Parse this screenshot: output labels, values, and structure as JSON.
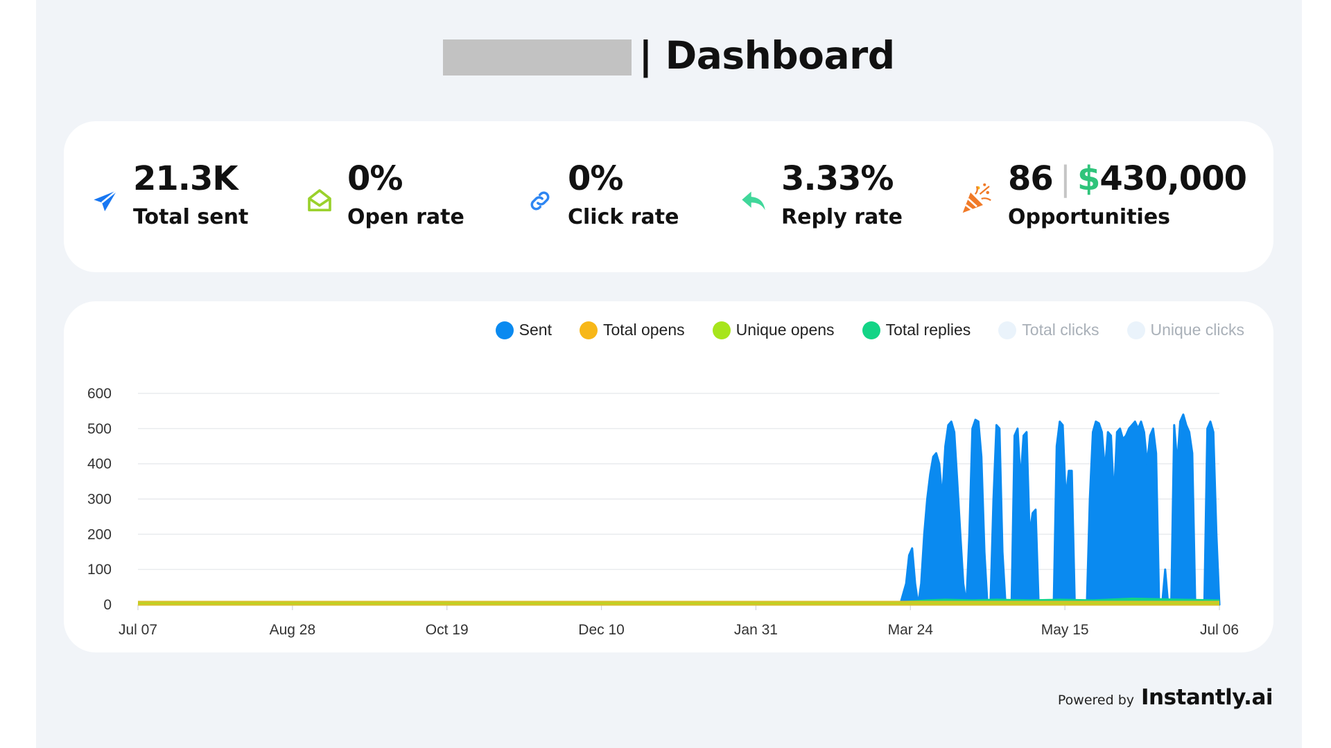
{
  "header": {
    "title": "| Dashboard"
  },
  "stats": [
    {
      "value": "21.3K",
      "label": "Total sent",
      "icon": "paper-plane-icon",
      "color": "#1877f2"
    },
    {
      "value": "0%",
      "label": "Open rate",
      "icon": "envelope-open-icon",
      "color": "#9ad12c"
    },
    {
      "value": "0%",
      "label": "Click rate",
      "icon": "link-icon",
      "color": "#2e86f2"
    },
    {
      "value": "3.33%",
      "label": "Reply rate",
      "icon": "reply-icon",
      "color": "#40d79a"
    },
    {
      "value_count": "86",
      "value_separator": "|",
      "value_currency": "$",
      "value_amount": "430,000",
      "label": "Opportunities",
      "icon": "party-popper-icon",
      "color": "#f07a28"
    }
  ],
  "chart_data": {
    "type": "area",
    "x_ticks": [
      "Jul 07",
      "Aug 28",
      "Oct 19",
      "Dec 10",
      "Jan 31",
      "Mar 24",
      "May 15",
      "Jul 06"
    ],
    "y_ticks": [
      "0",
      "100",
      "200",
      "300",
      "400",
      "500",
      "600"
    ],
    "ylim": [
      0,
      600
    ],
    "grid": true,
    "legend_position": "top-right",
    "legend": [
      {
        "name": "Sent",
        "color": "#0a8af0",
        "active": true
      },
      {
        "name": "Total opens",
        "color": "#f7b718",
        "active": true
      },
      {
        "name": "Unique opens",
        "color": "#a7e51c",
        "active": true
      },
      {
        "name": "Total replies",
        "color": "#13d486",
        "active": true
      },
      {
        "name": "Total clicks",
        "color": "#eaf3fb",
        "active": false
      },
      {
        "name": "Unique clicks",
        "color": "#eaf3fb",
        "active": false
      }
    ],
    "series": [
      {
        "name": "Sent",
        "points": [
          [
            253,
            0
          ],
          [
            255,
            60
          ],
          [
            256,
            140
          ],
          [
            257,
            160
          ],
          [
            258,
            60
          ],
          [
            259,
            0
          ],
          [
            260,
            60
          ],
          [
            261,
            200
          ],
          [
            262,
            300
          ],
          [
            263,
            370
          ],
          [
            264,
            420
          ],
          [
            265,
            430
          ],
          [
            266,
            400
          ],
          [
            267,
            300
          ],
          [
            268,
            450
          ],
          [
            269,
            510
          ],
          [
            270,
            520
          ],
          [
            271,
            490
          ],
          [
            272,
            350
          ],
          [
            273,
            200
          ],
          [
            274,
            60
          ],
          [
            275,
            0
          ],
          [
            276,
            200
          ],
          [
            277,
            500
          ],
          [
            278,
            525
          ],
          [
            279,
            520
          ],
          [
            280,
            420
          ],
          [
            281,
            150
          ],
          [
            282,
            0
          ],
          [
            283,
            0
          ],
          [
            284,
            300
          ],
          [
            285,
            510
          ],
          [
            286,
            500
          ],
          [
            287,
            150
          ],
          [
            288,
            0
          ],
          [
            289,
            0
          ],
          [
            290,
            0
          ],
          [
            291,
            480
          ],
          [
            292,
            500
          ],
          [
            293,
            350
          ],
          [
            294,
            480
          ],
          [
            295,
            490
          ],
          [
            296,
            200
          ],
          [
            297,
            260
          ],
          [
            298,
            270
          ],
          [
            299,
            0
          ],
          [
            300,
            0
          ],
          [
            301,
            0
          ],
          [
            302,
            0
          ],
          [
            303,
            0
          ],
          [
            304,
            0
          ],
          [
            305,
            450
          ],
          [
            306,
            520
          ],
          [
            307,
            510
          ],
          [
            308,
            300
          ],
          [
            309,
            380
          ],
          [
            310,
            380
          ],
          [
            311,
            0
          ],
          [
            312,
            0
          ],
          [
            313,
            0
          ],
          [
            314,
            0
          ],
          [
            315,
            0
          ],
          [
            316,
            300
          ],
          [
            317,
            490
          ],
          [
            318,
            520
          ],
          [
            319,
            515
          ],
          [
            320,
            490
          ],
          [
            321,
            380
          ],
          [
            322,
            490
          ],
          [
            323,
            480
          ],
          [
            324,
            300
          ],
          [
            325,
            490
          ],
          [
            326,
            500
          ],
          [
            327,
            470
          ],
          [
            328,
            480
          ],
          [
            329,
            500
          ],
          [
            330,
            510
          ],
          [
            331,
            520
          ],
          [
            332,
            500
          ],
          [
            333,
            520
          ],
          [
            334,
            490
          ],
          [
            335,
            400
          ],
          [
            336,
            480
          ],
          [
            337,
            500
          ],
          [
            338,
            430
          ],
          [
            339,
            0
          ],
          [
            340,
            0
          ],
          [
            341,
            100
          ],
          [
            342,
            0
          ],
          [
            343,
            0
          ],
          [
            344,
            510
          ],
          [
            345,
            400
          ],
          [
            346,
            520
          ],
          [
            347,
            540
          ],
          [
            348,
            510
          ],
          [
            349,
            490
          ],
          [
            350,
            430
          ],
          [
            351,
            0
          ],
          [
            352,
            0
          ],
          [
            353,
            0
          ],
          [
            354,
            0
          ],
          [
            355,
            500
          ],
          [
            356,
            520
          ],
          [
            357,
            490
          ],
          [
            358,
            200
          ],
          [
            359,
            0
          ]
        ]
      },
      {
        "name": "Total replies",
        "values_note": "",
        "points": [
          [
            0,
            5
          ],
          [
            253,
            5
          ],
          [
            262,
            10
          ],
          [
            268,
            12
          ],
          [
            277,
            10
          ],
          [
            285,
            12
          ],
          [
            296,
            10
          ],
          [
            306,
            12
          ],
          [
            317,
            10
          ],
          [
            330,
            15
          ],
          [
            346,
            12
          ],
          [
            359,
            10
          ]
        ]
      },
      {
        "name": "Total opens",
        "points": [
          [
            0,
            0
          ],
          [
            359,
            0
          ]
        ]
      },
      {
        "name": "Unique opens",
        "points": [
          [
            0,
            0
          ],
          [
            359,
            0
          ]
        ]
      }
    ]
  },
  "footer": {
    "powered_by": "Powered by",
    "brand": "Instantly.ai"
  }
}
